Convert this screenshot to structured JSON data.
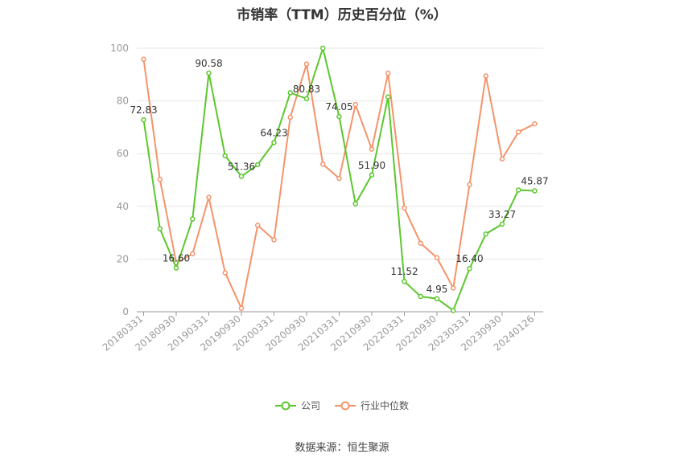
{
  "chart_data": {
    "type": "line",
    "title": "市销率（TTM）历史百分位（%）",
    "source": "数据来源：恒生聚源",
    "ylim": [
      0,
      100
    ],
    "yticks": [
      "0",
      "20",
      "40",
      "60",
      "80",
      "100"
    ],
    "xtick_labels": [
      "20180331",
      "20180930",
      "20190331",
      "20190930",
      "20200331",
      "20200930",
      "20210331",
      "20210930",
      "20220331",
      "20220930",
      "20230331",
      "20230930",
      "20240126"
    ],
    "grid": true,
    "legend_position": "bottom",
    "series": [
      {
        "name": "公司",
        "color": "#5cc72e",
        "values": [
          72.83,
          31.5,
          16.6,
          35.2,
          90.58,
          59.2,
          51.36,
          55.8,
          64.23,
          83.1,
          80.83,
          100,
          74.05,
          41.0,
          51.9,
          81.5,
          11.52,
          5.8,
          4.95,
          0.5,
          16.4,
          29.5,
          33.27,
          46.2,
          45.87
        ],
        "labels": [
          "72.83",
          "",
          "16.60",
          "",
          "90.58",
          "",
          "51.36",
          "",
          "64.23",
          "",
          "80.83",
          "",
          "74.05",
          "",
          "51.90",
          "",
          "11.52",
          "",
          "4.95",
          "",
          "16.40",
          "",
          "33.27",
          "",
          "45.87"
        ]
      },
      {
        "name": "行业中位数",
        "color": "#f4936a",
        "values": [
          95.8,
          50.2,
          18.6,
          22.0,
          43.4,
          14.8,
          1.3,
          32.8,
          27.3,
          73.8,
          94.0,
          56.0,
          50.6,
          78.6,
          61.7,
          90.5,
          39.3,
          26.0,
          20.5,
          9.0,
          48.2,
          89.5,
          58.0,
          68.2,
          71.3
        ]
      }
    ]
  }
}
